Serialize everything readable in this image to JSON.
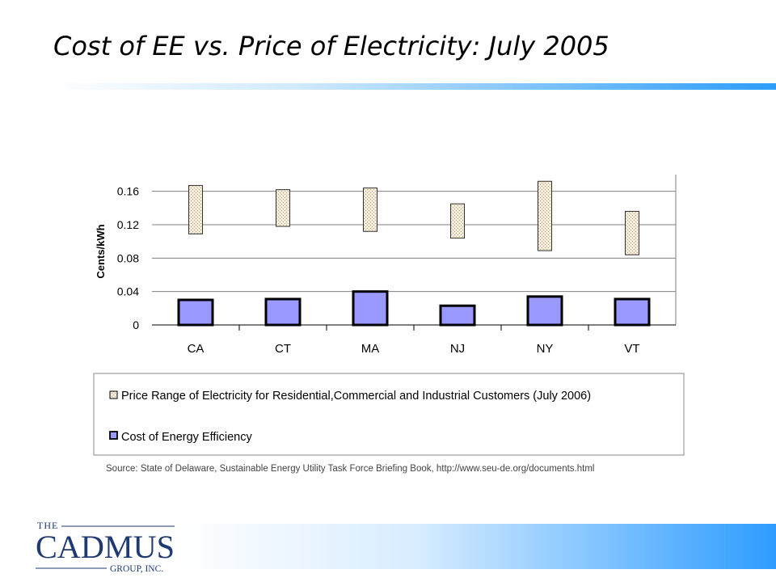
{
  "slide": {
    "title": "Cost of EE vs. Price of Electricity: July 2005",
    "source": "Source: State of Delaware, Sustainable Energy Utility Task Force Briefing Book, http://www.seu-de.org/documents.html"
  },
  "logo": {
    "line1": "THE",
    "line2": "CADMUS",
    "line3": "GROUP, INC."
  },
  "colors": {
    "price_fill": "#f3ead7",
    "ee_fill": "#9999ff",
    "grid": "#808080",
    "logo": "#1f3a73",
    "title_rule_end": "#2d9cff"
  },
  "chart_data": {
    "type": "bar",
    "ylabel": "Cents/kWh",
    "ylim": [
      0,
      0.18
    ],
    "yticks": [
      0,
      0.04,
      0.08,
      0.12,
      0.16
    ],
    "ytick_labels": [
      "0",
      "0.04",
      "0.08",
      "0.12",
      "0.16"
    ],
    "categories": [
      "CA",
      "CT",
      "MA",
      "NJ",
      "NY",
      "VT"
    ],
    "series": [
      {
        "name": "Price Range of Electricity for Residential,Commercial  and Industrial Customers (July 2006)",
        "kind": "range",
        "low": [
          0.109,
          0.118,
          0.112,
          0.104,
          0.089,
          0.084
        ],
        "high": [
          0.167,
          0.162,
          0.164,
          0.145,
          0.172,
          0.136
        ]
      },
      {
        "name": "Cost of Energy Efficiency",
        "kind": "bar",
        "values": [
          0.03,
          0.031,
          0.04,
          0.023,
          0.034,
          0.031
        ]
      }
    ],
    "grid": true,
    "legend_position": "bottom"
  }
}
